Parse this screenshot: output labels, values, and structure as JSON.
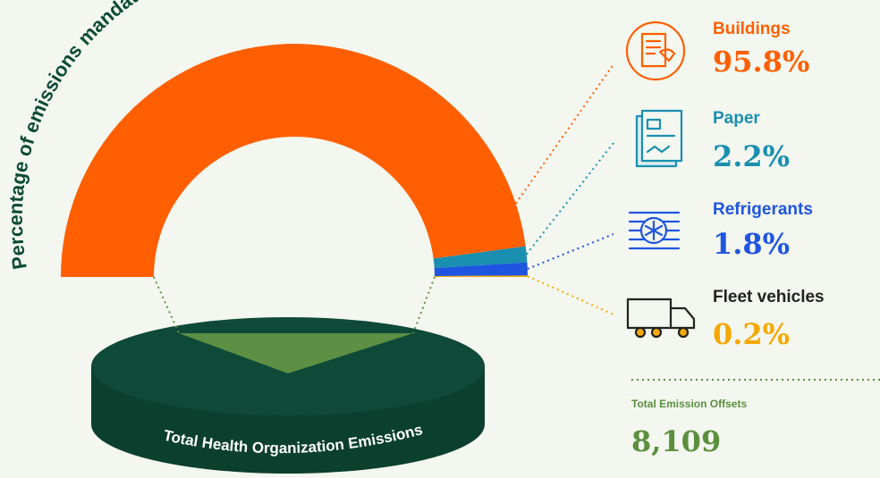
{
  "chart_data": {
    "type": "pie",
    "title": "Percentage of emissions mandated for reporting by source",
    "categories": [
      "Buildings",
      "Paper",
      "Refrigerants",
      "Fleet vehicles"
    ],
    "values": [
      95.8,
      2.2,
      1.8,
      0.2
    ],
    "value_labels": [
      "95.8%",
      "2.2%",
      "1.8%",
      "0.2%"
    ],
    "colors": [
      "#ff5f00",
      "#1a8fb0",
      "#1e55e0",
      "#f5a800"
    ],
    "base_label": "Total Health Organization Emissions",
    "total_label": "Total Emission Offsets",
    "total_value": "8,109"
  }
}
